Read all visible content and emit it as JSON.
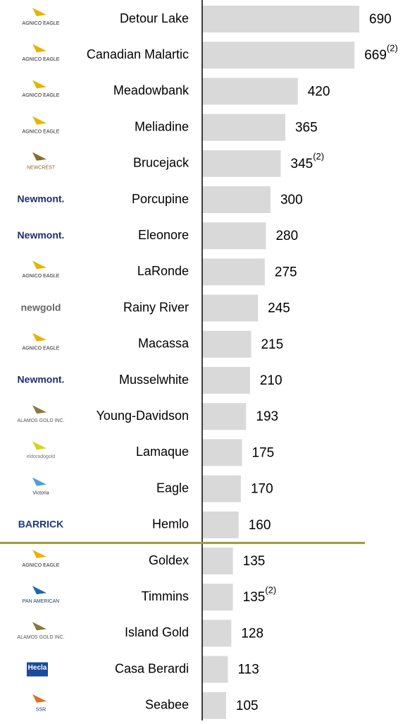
{
  "chart_data": {
    "type": "barh",
    "categories": [
      "Detour Lake",
      "Canadian Malartic",
      "Meadowbank",
      "Meliadine",
      "Brucejack",
      "Porcupine",
      "Eleonore",
      "LaRonde",
      "Rainy River",
      "Macassa",
      "Musselwhite",
      "Young-Davidson",
      "Lamaque",
      "Eagle",
      "Hemlo",
      "Goldex",
      "Timmins",
      "Island Gold",
      "Casa Berardi",
      "Seabee"
    ],
    "values": [
      690,
      669,
      420,
      365,
      345,
      300,
      280,
      275,
      245,
      215,
      210,
      193,
      175,
      170,
      160,
      135,
      135,
      128,
      113,
      105
    ],
    "annotations": [
      {
        "index": 1,
        "text": "(2)"
      },
      {
        "index": 4,
        "text": "(2)"
      },
      {
        "index": 16,
        "text": "(2)"
      }
    ],
    "logos": [
      {
        "text": "AGNICO EAGLE",
        "color": "#222222",
        "icon": "#e8b400"
      },
      {
        "text": "AGNICO EAGLE",
        "color": "#222222",
        "icon": "#e8b400"
      },
      {
        "text": "AGNICO EAGLE",
        "color": "#222222",
        "icon": "#e8b400"
      },
      {
        "text": "AGNICO EAGLE",
        "color": "#222222",
        "icon": "#e8b400"
      },
      {
        "text": "NEWCREST",
        "color": "#8a6a2a",
        "icon": "#8a6a2a"
      },
      {
        "text": "Newmont.",
        "color": "#1c2f6b"
      },
      {
        "text": "Newmont.",
        "color": "#1c2f6b"
      },
      {
        "text": "AGNICO EAGLE",
        "color": "#222222",
        "icon": "#e8b400"
      },
      {
        "text": "newgold",
        "color": "#666666"
      },
      {
        "text": "AGNICO EAGLE",
        "color": "#222222",
        "icon": "#e8b400"
      },
      {
        "text": "Newmont.",
        "color": "#1c2f6b"
      },
      {
        "text": "ALAMOS GOLD INC.",
        "color": "#555555",
        "icon": "#8a7a3a"
      },
      {
        "text": "eldoradogold",
        "color": "#777777",
        "icon": "#d4d41a"
      },
      {
        "text": "Victoria",
        "color": "#333333",
        "icon": "#4aa0d8"
      },
      {
        "text": "BARRICK",
        "color": "#1a3a7a"
      },
      {
        "text": "AGNICO EAGLE",
        "color": "#222222",
        "icon": "#e8b400"
      },
      {
        "text": "PAN AMERICAN",
        "color": "#1a3a6a",
        "icon": "#1a6ab0"
      },
      {
        "text": "ALAMOS GOLD INC.",
        "color": "#555555",
        "icon": "#8a7a3a"
      },
      {
        "text": "Hecla",
        "color": "#ffffff",
        "icon": "#1a4a9a"
      },
      {
        "text": "SSR",
        "color": "#1a3a6a",
        "icon": "#e07020"
      }
    ],
    "color": "#d9d9d9",
    "divider_color": "#9c9a3c",
    "divider_after": 14,
    "xlim": [
      0,
      690
    ]
  }
}
